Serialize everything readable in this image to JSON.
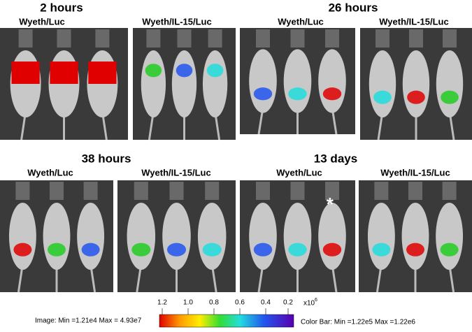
{
  "panels": [
    {
      "title": "2 hours",
      "images": [
        {
          "label": "Wyeth/Luc"
        },
        {
          "label": "Wyeth/IL-15/Luc"
        }
      ]
    },
    {
      "title": "26 hours",
      "images": [
        {
          "label": "Wyeth/Luc"
        },
        {
          "label": "Wyeth/IL-15/Luc"
        }
      ]
    },
    {
      "title": "38 hours",
      "images": [
        {
          "label": "Wyeth/Luc"
        },
        {
          "label": "Wyeth/IL-15/Luc"
        }
      ]
    },
    {
      "title": "13 days",
      "images": [
        {
          "label": "Wyeth/Luc",
          "annotation": "*"
        },
        {
          "label": "Wyeth/IL-15/Luc"
        }
      ]
    }
  ],
  "colorbar": {
    "ticks": [
      "1.2",
      "1.0",
      "0.8",
      "0.6",
      "0.4",
      "0.2"
    ],
    "unit_base": "x10",
    "unit_exponent": "6",
    "image_range": "Image:  Min =1.21e4  Max = 4.93e7",
    "bar_range": "Color Bar:  Min =1.22e5    Max =1.22e6"
  }
}
